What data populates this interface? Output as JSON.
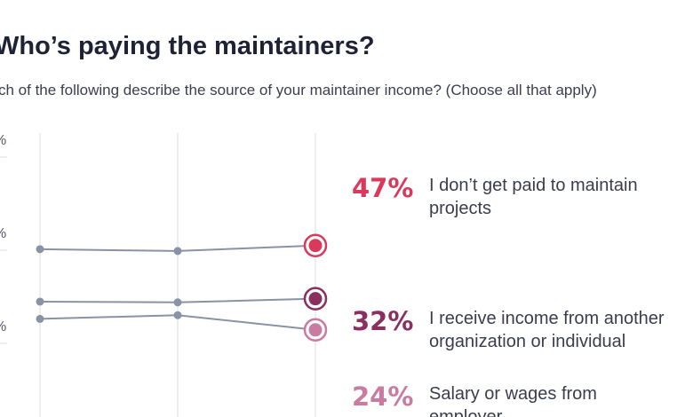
{
  "title": "Who’s paying the maintainers?",
  "subtitle": "ch of the following describe the source of your maintainer income? (Choose all that apply)",
  "colors": {
    "line": "#8a93a6",
    "grid": "#d9dce3",
    "s0": "#d93a5c",
    "s1": "#8a3060",
    "s2": "#c97ba2"
  },
  "chart_data": {
    "type": "line",
    "title": "Who’s paying the maintainers?",
    "subtitle": "ch of the following describe the source of your maintainer income? (Choose all that apply)",
    "x": [
      "",
      "",
      ""
    ],
    "ylim": [
      0,
      75
    ],
    "yticks": [
      "%",
      "%",
      "%"
    ],
    "grid": true,
    "series": [
      {
        "pct_label": "47%",
        "lines": [
          "I don’t get paid to maintain",
          "projects"
        ],
        "values": [
          46.0,
          45.5,
          47.0
        ]
      },
      {
        "pct_label": "32%",
        "lines": [
          "I receive income from another",
          "organization or individual"
        ],
        "values": [
          31.7,
          31.5,
          32.5
        ]
      },
      {
        "pct_label": "24%",
        "lines": [
          "Salary or wages from",
          "employer"
        ],
        "values": [
          27.0,
          28.0,
          24.0
        ]
      }
    ]
  }
}
